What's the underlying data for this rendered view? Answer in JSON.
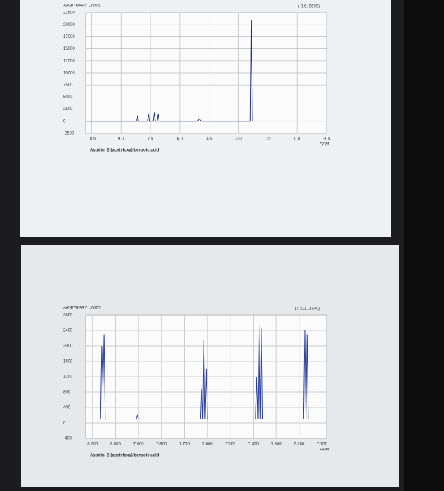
{
  "chart_data": [
    {
      "type": "line",
      "title": "Aspirin, 2-(acetyloxy) benzoic acid",
      "y_label": "ARBITRARY UNITS",
      "x_label": "PPM",
      "annotation": "(-0.6, 9690)",
      "x": [
        10.8,
        8.2,
        8.15,
        8.1,
        7.65,
        7.6,
        7.55,
        7.35,
        7.3,
        7.25,
        7.15,
        7.1,
        7.05,
        5.1,
        5.0,
        4.9,
        2.4,
        2.35,
        2.3
      ],
      "values": [
        0,
        0,
        1200,
        0,
        0,
        1500,
        0,
        0,
        1800,
        0,
        0,
        1500,
        0,
        0,
        500,
        0,
        0,
        21000,
        0
      ],
      "color": "#1f2f8f",
      "xlim": [
        10.8,
        -1.5
      ],
      "xticks": [
        10.5,
        {
          "value": 9,
          "label": "9.0"
        },
        7.5,
        {
          "value": 6,
          "label": "6.0"
        },
        4.5,
        {
          "value": 3,
          "label": "3.0"
        },
        1.5,
        {
          "value": 0,
          "label": "0.0"
        },
        -1.5
      ],
      "ylim": [
        -2500,
        22500
      ],
      "yticks": [
        -2500,
        0,
        2500,
        5000,
        7500,
        10000,
        12500,
        15000,
        17500,
        20000,
        22500
      ],
      "grid": true
    },
    {
      "type": "line",
      "title": "Aspirin, 2-(acetyloxy) benzoic acid",
      "y_label": "ARBITRARY UNITS",
      "x_label": "PPM",
      "annotation": "(7.211, 1300)",
      "x": [
        8.12,
        8.065,
        8.06,
        8.055,
        8.05,
        8.045,
        7.91,
        7.905,
        7.9,
        7.63,
        7.625,
        7.62,
        7.615,
        7.61,
        7.605,
        7.6,
        7.39,
        7.385,
        7.38,
        7.375,
        7.37,
        7.365,
        7.36,
        7.18,
        7.175,
        7.17,
        7.165,
        7.16,
        7.09
      ],
      "values": [
        100,
        100,
        2000,
        900,
        2300,
        100,
        100,
        200,
        100,
        100,
        900,
        100,
        2150,
        100,
        1400,
        100,
        100,
        1200,
        100,
        2550,
        100,
        2450,
        100,
        100,
        2400,
        100,
        2300,
        100,
        100
      ],
      "color": "#2b3f9f",
      "xlim": [
        8.13,
        7.08
      ],
      "xticks": [
        {
          "value": 8.1,
          "label": "8.100"
        },
        {
          "value": 8,
          "label": "8.000"
        },
        {
          "value": 7.9,
          "label": "7.900"
        },
        {
          "value": 7.8,
          "label": "7.800"
        },
        {
          "value": 7.7,
          "label": "7.700"
        },
        {
          "value": 7.6,
          "label": "7.600"
        },
        {
          "value": 7.5,
          "label": "7.500"
        },
        {
          "value": 7.4,
          "label": "7.400"
        },
        {
          "value": 7.3,
          "label": "7.300"
        },
        {
          "value": 7.2,
          "label": "7.200"
        },
        {
          "value": 7.1,
          "label": "7.100"
        }
      ],
      "ylim": [
        -400,
        2800
      ],
      "yticks": [
        -400,
        0,
        400,
        800,
        1200,
        1600,
        2000,
        2400,
        2800
      ],
      "grid": true
    }
  ]
}
